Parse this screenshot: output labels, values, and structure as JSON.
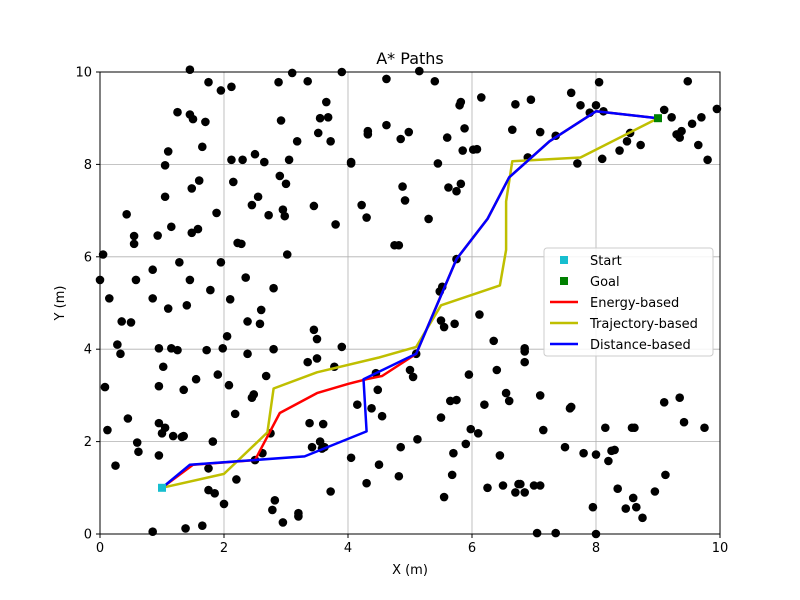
{
  "chart_data": {
    "type": "scatter",
    "title": "A* Paths",
    "xlabel": "X (m)",
    "ylabel": "Y (m)",
    "xlim": [
      0,
      10
    ],
    "ylim": [
      0,
      10
    ],
    "xticks": [
      0,
      2,
      4,
      6,
      8,
      10
    ],
    "yticks": [
      0,
      2,
      4,
      6,
      8,
      10
    ],
    "grid": true,
    "legend_position": "center-right",
    "start": {
      "name": "Start",
      "x": 1.0,
      "y": 1.0,
      "color": "#17becf"
    },
    "goal": {
      "name": "Goal",
      "x": 9.0,
      "y": 9.0,
      "color": "#008000"
    },
    "obstacles": {
      "color": "#000000",
      "points": [
        [
          0.0,
          5.5
        ],
        [
          0.05,
          6.05
        ],
        [
          0.08,
          3.18
        ],
        [
          0.12,
          2.25
        ],
        [
          0.15,
          5.1
        ],
        [
          0.25,
          1.48
        ],
        [
          0.28,
          4.1
        ],
        [
          0.33,
          3.9
        ],
        [
          0.35,
          4.6
        ],
        [
          0.45,
          2.5
        ],
        [
          0.43,
          6.92
        ],
        [
          0.5,
          4.58
        ],
        [
          0.55,
          6.45
        ],
        [
          0.55,
          6.28
        ],
        [
          0.58,
          5.5
        ],
        [
          0.6,
          1.98
        ],
        [
          0.62,
          1.78
        ],
        [
          0.85,
          5.1
        ],
        [
          0.85,
          5.72
        ],
        [
          0.93,
          6.46
        ],
        [
          0.95,
          2.4
        ],
        [
          0.95,
          1.7
        ],
        [
          0.95,
          3.2
        ],
        [
          0.95,
          4.02
        ],
        [
          1.0,
          2.18
        ],
        [
          1.02,
          3.62
        ],
        [
          1.05,
          2.3
        ],
        [
          1.1,
          8.28
        ],
        [
          1.05,
          7.98
        ],
        [
          1.05,
          7.3
        ],
        [
          1.1,
          4.88
        ],
        [
          1.15,
          6.65
        ],
        [
          1.15,
          4.02
        ],
        [
          1.18,
          2.12
        ],
        [
          1.25,
          9.13
        ],
        [
          1.25,
          3.98
        ],
        [
          1.28,
          5.88
        ],
        [
          1.32,
          2.1
        ],
        [
          1.35,
          2.12
        ],
        [
          1.35,
          3.12
        ],
        [
          1.38,
          0.12
        ],
        [
          1.45,
          10.05
        ],
        [
          1.45,
          9.08
        ],
        [
          1.48,
          7.48
        ],
        [
          1.48,
          6.52
        ],
        [
          1.4,
          4.95
        ],
        [
          1.45,
          5.5
        ],
        [
          1.5,
          8.98
        ],
        [
          1.55,
          3.35
        ],
        [
          1.6,
          7.65
        ],
        [
          1.58,
          6.6
        ],
        [
          1.65,
          8.38
        ],
        [
          1.65,
          0.18
        ],
        [
          1.7,
          8.92
        ],
        [
          1.72,
          3.98
        ],
        [
          1.75,
          9.78
        ],
        [
          1.75,
          0.95
        ],
        [
          1.75,
          1.42
        ],
        [
          1.78,
          5.28
        ],
        [
          1.82,
          2.0
        ],
        [
          1.85,
          0.88
        ],
        [
          1.88,
          6.95
        ],
        [
          1.9,
          3.45
        ],
        [
          1.95,
          9.6
        ],
        [
          1.95,
          5.88
        ],
        [
          1.98,
          4.02
        ],
        [
          2.0,
          0.65
        ],
        [
          2.05,
          4.28
        ],
        [
          2.08,
          3.22
        ],
        [
          2.1,
          5.08
        ],
        [
          2.12,
          9.68
        ],
        [
          2.12,
          8.1
        ],
        [
          2.15,
          7.62
        ],
        [
          2.18,
          2.6
        ],
        [
          2.2,
          1.18
        ],
        [
          2.22,
          6.3
        ],
        [
          2.28,
          6.28
        ],
        [
          2.3,
          8.1
        ],
        [
          2.35,
          5.55
        ],
        [
          2.38,
          3.9
        ],
        [
          2.38,
          4.6
        ],
        [
          2.45,
          7.12
        ],
        [
          2.45,
          2.95
        ],
        [
          2.48,
          3.02
        ],
        [
          2.5,
          8.22
        ],
        [
          2.5,
          1.6
        ],
        [
          2.55,
          7.3
        ],
        [
          2.58,
          4.55
        ],
        [
          2.6,
          4.85
        ],
        [
          2.62,
          1.75
        ],
        [
          2.65,
          8.05
        ],
        [
          2.68,
          3.42
        ],
        [
          2.75,
          2.18
        ],
        [
          2.72,
          6.9
        ],
        [
          2.78,
          0.52
        ],
        [
          2.8,
          4.0
        ],
        [
          2.8,
          5.32
        ],
        [
          2.82,
          0.73
        ],
        [
          2.88,
          9.78
        ],
        [
          2.9,
          7.75
        ],
        [
          2.92,
          8.95
        ],
        [
          2.95,
          7.02
        ],
        [
          2.95,
          0.25
        ],
        [
          2.98,
          6.88
        ],
        [
          3.0,
          7.58
        ],
        [
          3.02,
          6.05
        ],
        [
          3.05,
          8.1
        ],
        [
          3.1,
          9.98
        ],
        [
          3.18,
          8.5
        ],
        [
          3.2,
          0.45
        ],
        [
          3.2,
          0.38
        ],
        [
          3.35,
          9.8
        ],
        [
          3.35,
          3.72
        ],
        [
          3.38,
          2.4
        ],
        [
          3.42,
          1.88
        ],
        [
          3.45,
          7.1
        ],
        [
          3.45,
          4.42
        ],
        [
          3.5,
          4.22
        ],
        [
          3.5,
          3.8
        ],
        [
          3.52,
          8.68
        ],
        [
          3.55,
          9.0
        ],
        [
          3.55,
          2.0
        ],
        [
          3.58,
          1.85
        ],
        [
          3.6,
          2.38
        ],
        [
          3.62,
          1.88
        ],
        [
          3.65,
          9.35
        ],
        [
          3.68,
          9.02
        ],
        [
          3.72,
          8.5
        ],
        [
          3.72,
          0.92
        ],
        [
          3.78,
          3.62
        ],
        [
          3.8,
          6.7
        ],
        [
          3.9,
          4.05
        ],
        [
          3.9,
          10.0
        ],
        [
          4.05,
          8.05
        ],
        [
          4.05,
          8.02
        ],
        [
          4.05,
          1.65
        ],
        [
          4.15,
          2.8
        ],
        [
          4.22,
          7.12
        ],
        [
          4.3,
          6.85
        ],
        [
          4.3,
          1.1
        ],
        [
          4.32,
          8.72
        ],
        [
          4.32,
          8.65
        ],
        [
          4.38,
          2.72
        ],
        [
          4.45,
          3.48
        ],
        [
          4.48,
          3.12
        ],
        [
          4.5,
          1.5
        ],
        [
          4.55,
          2.55
        ],
        [
          4.62,
          8.85
        ],
        [
          4.62,
          9.85
        ],
        [
          4.75,
          6.25
        ],
        [
          4.82,
          6.25
        ],
        [
          4.82,
          1.25
        ],
        [
          4.85,
          1.88
        ],
        [
          4.85,
          8.55
        ],
        [
          4.88,
          7.52
        ],
        [
          4.92,
          7.22
        ],
        [
          4.98,
          8.7
        ],
        [
          5.0,
          3.55
        ],
        [
          5.05,
          3.4
        ],
        [
          5.1,
          3.9
        ],
        [
          5.12,
          2.05
        ],
        [
          5.15,
          10.02
        ],
        [
          5.3,
          6.82
        ],
        [
          5.4,
          9.8
        ],
        [
          5.45,
          8.02
        ],
        [
          5.48,
          5.25
        ],
        [
          5.5,
          2.52
        ],
        [
          5.5,
          4.62
        ],
        [
          5.52,
          5.35
        ],
        [
          5.55,
          4.48
        ],
        [
          5.55,
          0.8
        ],
        [
          5.6,
          8.58
        ],
        [
          5.62,
          7.5
        ],
        [
          5.65,
          2.88
        ],
        [
          5.68,
          1.28
        ],
        [
          5.7,
          1.75
        ],
        [
          5.72,
          4.55
        ],
        [
          5.75,
          7.42
        ],
        [
          5.75,
          2.9
        ],
        [
          5.75,
          5.95
        ],
        [
          5.8,
          9.28
        ],
        [
          5.82,
          9.35
        ],
        [
          5.82,
          7.58
        ],
        [
          5.85,
          8.3
        ],
        [
          5.88,
          8.78
        ],
        [
          5.9,
          1.95
        ],
        [
          5.95,
          3.45
        ],
        [
          5.98,
          2.27
        ],
        [
          6.02,
          8.32
        ],
        [
          6.08,
          8.33
        ],
        [
          6.1,
          2.18
        ],
        [
          6.12,
          4.75
        ],
        [
          6.15,
          9.45
        ],
        [
          6.2,
          2.8
        ],
        [
          6.25,
          1.0
        ],
        [
          6.35,
          4.18
        ],
        [
          6.4,
          3.55
        ],
        [
          6.45,
          1.7
        ],
        [
          6.5,
          1.05
        ],
        [
          6.55,
          3.05
        ],
        [
          6.6,
          2.88
        ],
        [
          6.65,
          8.75
        ],
        [
          6.7,
          9.3
        ],
        [
          6.7,
          0.9
        ],
        [
          6.75,
          1.08
        ],
        [
          6.78,
          1.08
        ],
        [
          6.85,
          0.9
        ],
        [
          6.85,
          4.02
        ],
        [
          6.85,
          3.72
        ],
        [
          6.85,
          3.95
        ],
        [
          6.9,
          8.15
        ],
        [
          6.95,
          9.4
        ],
        [
          7.0,
          1.05
        ],
        [
          7.05,
          0.02
        ],
        [
          7.1,
          8.7
        ],
        [
          7.1,
          3.0
        ],
        [
          7.1,
          1.05
        ],
        [
          7.15,
          2.25
        ],
        [
          7.35,
          8.62
        ],
        [
          7.35,
          0.02
        ],
        [
          7.5,
          1.88
        ],
        [
          7.58,
          2.72
        ],
        [
          7.6,
          2.75
        ],
        [
          7.6,
          9.55
        ],
        [
          7.7,
          8.02
        ],
        [
          7.75,
          9.28
        ],
        [
          7.8,
          1.75
        ],
        [
          7.9,
          9.12
        ],
        [
          7.95,
          0.58
        ],
        [
          8.0,
          9.28
        ],
        [
          8.0,
          1.72
        ],
        [
          8.05,
          9.78
        ],
        [
          8.1,
          8.12
        ],
        [
          8.12,
          9.15
        ],
        [
          8.15,
          2.3
        ],
        [
          8.2,
          1.58
        ],
        [
          8.25,
          1.8
        ],
        [
          8.3,
          1.82
        ],
        [
          8.35,
          0.98
        ],
        [
          8.38,
          8.3
        ],
        [
          8.48,
          0.55
        ],
        [
          8.5,
          8.5
        ],
        [
          8.55,
          8.68
        ],
        [
          8.58,
          2.3
        ],
        [
          8.6,
          0.78
        ],
        [
          8.62,
          2.3
        ],
        [
          8.65,
          0.58
        ],
        [
          8.72,
          8.42
        ],
        [
          8.75,
          0.35
        ],
        [
          9.1,
          9.18
        ],
        [
          9.1,
          2.85
        ],
        [
          9.12,
          1.28
        ],
        [
          9.22,
          9.02
        ],
        [
          9.3,
          8.65
        ],
        [
          9.35,
          2.95
        ],
        [
          9.35,
          8.58
        ],
        [
          9.38,
          8.72
        ],
        [
          9.42,
          2.42
        ],
        [
          9.48,
          9.8
        ],
        [
          9.55,
          8.88
        ],
        [
          9.65,
          8.42
        ],
        [
          9.7,
          9.02
        ],
        [
          9.75,
          2.3
        ],
        [
          9.8,
          8.1
        ],
        [
          9.95,
          9.2
        ],
        [
          0.85,
          0.05
        ],
        [
          8.95,
          0.92
        ],
        [
          8.0,
          0.0
        ]
      ]
    },
    "series": [
      {
        "name": "Energy-based",
        "color": "#ff0000",
        "points": [
          [
            1.0,
            1.0
          ],
          [
            1.5,
            1.5
          ],
          [
            2.5,
            1.6
          ],
          [
            2.9,
            2.62
          ],
          [
            3.5,
            3.05
          ],
          [
            4.0,
            3.25
          ],
          [
            4.3,
            3.35
          ],
          [
            4.55,
            3.42
          ],
          [
            5.1,
            3.9
          ],
          [
            5.75,
            5.95
          ],
          [
            6.25,
            6.82
          ],
          [
            6.6,
            7.72
          ],
          [
            7.25,
            8.5
          ],
          [
            8.0,
            9.15
          ],
          [
            9.0,
            9.0
          ]
        ]
      },
      {
        "name": "Trajectory-based",
        "color": "#bfbf00",
        "points": [
          [
            1.0,
            1.0
          ],
          [
            2.0,
            1.3
          ],
          [
            2.7,
            2.2
          ],
          [
            2.8,
            3.15
          ],
          [
            3.5,
            3.5
          ],
          [
            4.5,
            3.82
          ],
          [
            5.1,
            4.05
          ],
          [
            5.5,
            4.95
          ],
          [
            6.45,
            5.38
          ],
          [
            6.55,
            6.15
          ],
          [
            6.55,
            7.2
          ],
          [
            6.65,
            8.07
          ],
          [
            7.75,
            8.15
          ],
          [
            9.0,
            9.0
          ]
        ]
      },
      {
        "name": "Distance-based",
        "color": "#0000ff",
        "points": [
          [
            1.0,
            1.0
          ],
          [
            1.45,
            1.5
          ],
          [
            3.3,
            1.68
          ],
          [
            4.3,
            2.22
          ],
          [
            4.25,
            3.35
          ],
          [
            5.1,
            3.9
          ],
          [
            5.75,
            5.95
          ],
          [
            6.25,
            6.82
          ],
          [
            6.6,
            7.72
          ],
          [
            7.25,
            8.5
          ],
          [
            8.0,
            9.15
          ],
          [
            9.0,
            9.0
          ]
        ]
      }
    ]
  }
}
